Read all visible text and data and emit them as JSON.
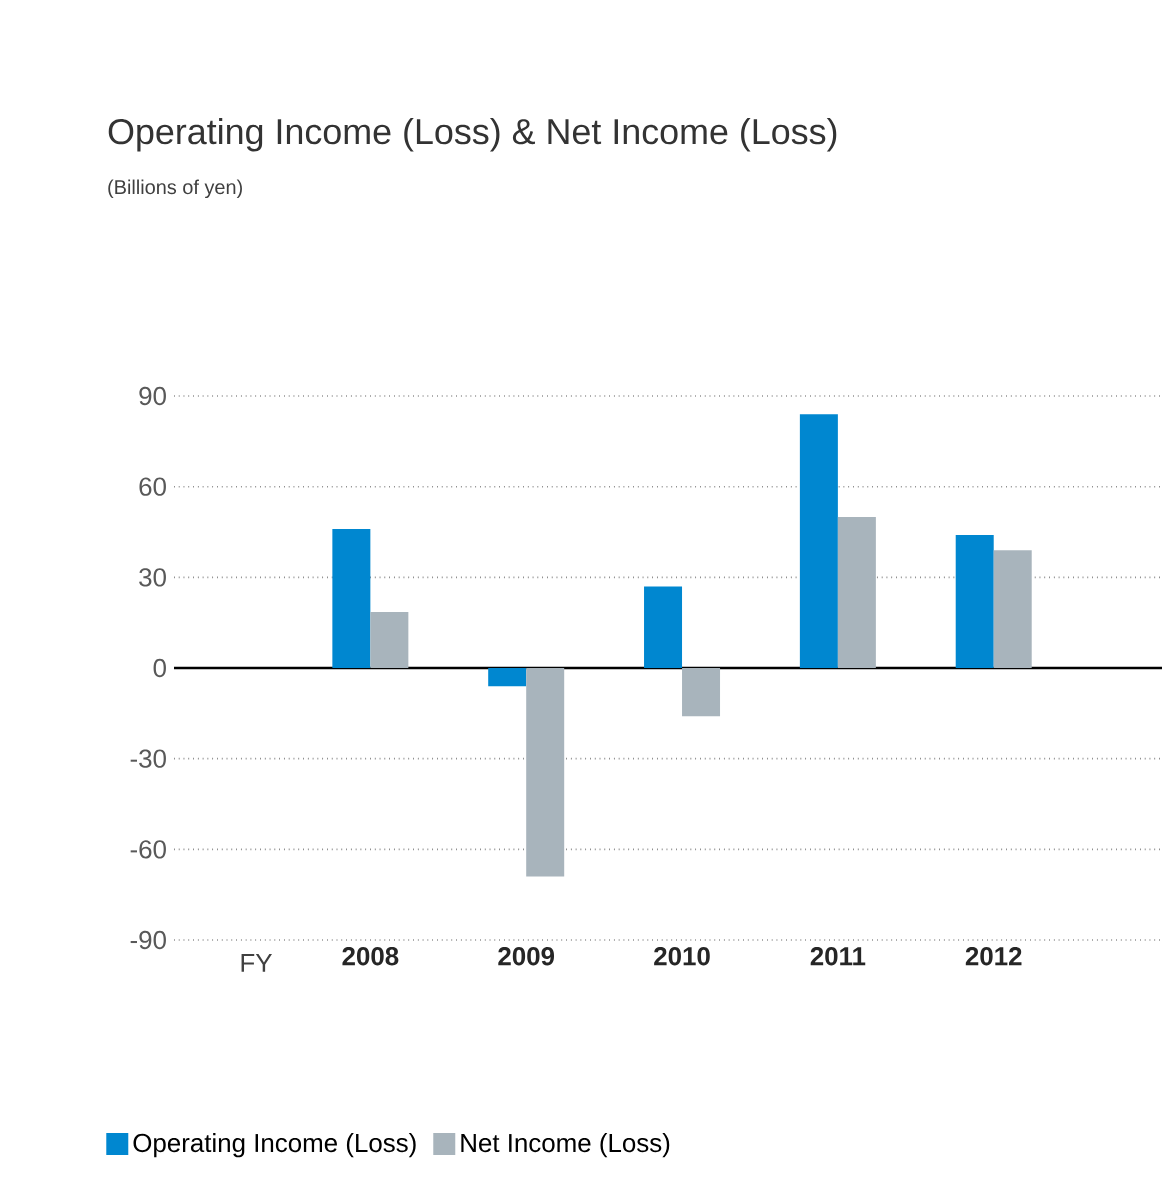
{
  "chart_data": {
    "type": "bar",
    "title": "Operating Income (Loss) & Net Income (Loss)",
    "subtitle": "(Billions of yen)",
    "xlabel": "FY",
    "categories": [
      "2008",
      "2009",
      "2010",
      "2011",
      "2012"
    ],
    "series": [
      {
        "name": "Operating Income (Loss)",
        "color": "#0087d0",
        "values": [
          46,
          -6,
          27,
          84,
          44
        ]
      },
      {
        "name": "Net Income (Loss)",
        "color": "#a8b4bc",
        "values": [
          18.5,
          -69,
          -16,
          50,
          39
        ]
      }
    ],
    "ylim": [
      -90,
      90
    ],
    "yticks": [
      -90,
      -60,
      -30,
      0,
      30,
      60,
      90
    ],
    "grid": "y",
    "legend": "bottom"
  }
}
